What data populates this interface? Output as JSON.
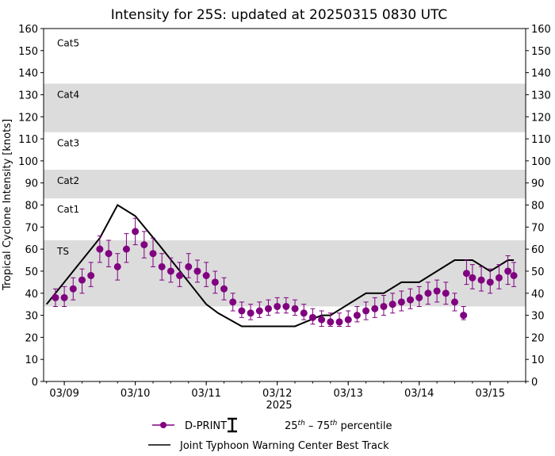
{
  "chart_data": {
    "type": "scatter",
    "title": "Intensity for 25S: updated at 20250315 0830 UTC",
    "xlabel": "2025",
    "ylabel": "Tropical Cyclone Intensity [knots]",
    "xlim": [
      "2025-03-08T17:00",
      "2025-03-15T12:00"
    ],
    "ylim": [
      0,
      160
    ],
    "yticks": [
      0,
      10,
      20,
      30,
      40,
      50,
      60,
      70,
      80,
      90,
      100,
      110,
      120,
      130,
      140,
      150,
      160
    ],
    "xticks": [
      {
        "t": "2025-03-09T00:00",
        "label": "03/09"
      },
      {
        "t": "2025-03-10T00:00",
        "label": "03/10"
      },
      {
        "t": "2025-03-11T00:00",
        "label": "03/11"
      },
      {
        "t": "2025-03-12T00:00",
        "label": "03/12"
      },
      {
        "t": "2025-03-13T00:00",
        "label": "03/13"
      },
      {
        "t": "2025-03-14T00:00",
        "label": "03/14"
      },
      {
        "t": "2025-03-15T00:00",
        "label": "03/15"
      }
    ],
    "grid": false,
    "category_bands": [
      {
        "label": "TS",
        "low": 34,
        "high": 64,
        "shaded": true
      },
      {
        "label": "Cat1",
        "low": 64,
        "high": 83,
        "shaded": false
      },
      {
        "label": "Cat2",
        "low": 83,
        "high": 96,
        "shaded": true
      },
      {
        "label": "Cat3",
        "low": 96,
        "high": 113,
        "shaded": false
      },
      {
        "label": "Cat4",
        "low": 113,
        "high": 135,
        "shaded": true
      },
      {
        "label": "Cat5",
        "low": 135,
        "high": 160,
        "shaded": false
      }
    ],
    "colors": {
      "dprint": "#800080",
      "best_track": "#000000",
      "band": "#dcdcdc"
    },
    "legend_position": "bottom",
    "legend": {
      "dprint": "D-PRINT",
      "percentile_pre": "25",
      "percentile_sup1": "th",
      "percentile_mid": " – 75",
      "percentile_sup2": "th",
      "percentile_post": " percentile",
      "best_track": "Joint Typhoon Warning Center Best Track"
    },
    "series": [
      {
        "name": "D-PRINT",
        "points": [
          [
            "2025-03-08T21:00",
            38,
            34,
            42
          ],
          [
            "2025-03-09T00:00",
            38,
            34,
            43
          ],
          [
            "2025-03-09T03:00",
            42,
            37,
            47
          ],
          [
            "2025-03-09T06:00",
            46,
            40,
            51
          ],
          [
            "2025-03-09T09:00",
            48,
            43,
            54
          ],
          [
            "2025-03-09T12:00",
            60,
            54,
            66
          ],
          [
            "2025-03-09T15:00",
            58,
            52,
            64
          ],
          [
            "2025-03-09T18:00",
            52,
            46,
            58
          ],
          [
            "2025-03-09T21:00",
            60,
            54,
            67
          ],
          [
            "2025-03-10T00:00",
            68,
            62,
            74
          ],
          [
            "2025-03-10T03:00",
            62,
            56,
            68
          ],
          [
            "2025-03-10T06:00",
            58,
            52,
            65
          ],
          [
            "2025-03-10T09:00",
            52,
            46,
            58
          ],
          [
            "2025-03-10T12:00",
            50,
            45,
            56
          ],
          [
            "2025-03-10T15:00",
            48,
            43,
            54
          ],
          [
            "2025-03-10T18:00",
            52,
            47,
            58
          ],
          [
            "2025-03-10T21:00",
            50,
            45,
            55
          ],
          [
            "2025-03-11T00:00",
            48,
            43,
            54
          ],
          [
            "2025-03-11T03:00",
            45,
            40,
            50
          ],
          [
            "2025-03-11T06:00",
            42,
            37,
            47
          ],
          [
            "2025-03-11T09:00",
            36,
            32,
            40
          ],
          [
            "2025-03-11T12:00",
            32,
            29,
            36
          ],
          [
            "2025-03-11T15:00",
            31,
            28,
            35
          ],
          [
            "2025-03-11T18:00",
            32,
            29,
            36
          ],
          [
            "2025-03-11T21:00",
            33,
            30,
            37
          ],
          [
            "2025-03-12T00:00",
            34,
            31,
            38
          ],
          [
            "2025-03-12T03:00",
            34,
            31,
            38
          ],
          [
            "2025-03-12T06:00",
            33,
            30,
            37
          ],
          [
            "2025-03-12T09:00",
            31,
            28,
            35
          ],
          [
            "2025-03-12T12:00",
            29,
            26,
            33
          ],
          [
            "2025-03-12T15:00",
            28,
            25,
            32
          ],
          [
            "2025-03-12T18:00",
            27,
            25,
            31
          ],
          [
            "2025-03-12T21:00",
            27,
            25,
            31
          ],
          [
            "2025-03-13T00:00",
            28,
            25,
            32
          ],
          [
            "2025-03-13T03:00",
            30,
            27,
            34
          ],
          [
            "2025-03-13T06:00",
            32,
            28,
            36
          ],
          [
            "2025-03-13T09:00",
            33,
            29,
            38
          ],
          [
            "2025-03-13T12:00",
            34,
            30,
            39
          ],
          [
            "2025-03-13T15:00",
            35,
            31,
            40
          ],
          [
            "2025-03-13T18:00",
            36,
            32,
            41
          ],
          [
            "2025-03-13T21:00",
            37,
            33,
            42
          ],
          [
            "2025-03-14T00:00",
            38,
            34,
            43
          ],
          [
            "2025-03-14T03:00",
            40,
            35,
            45
          ],
          [
            "2025-03-14T06:00",
            41,
            36,
            46
          ],
          [
            "2025-03-14T09:00",
            40,
            35,
            45
          ],
          [
            "2025-03-14T12:00",
            36,
            32,
            40
          ],
          [
            "2025-03-14T15:00",
            30,
            28,
            34
          ],
          [
            "2025-03-14T16:00",
            49,
            44,
            55
          ],
          [
            "2025-03-14T18:00",
            47,
            42,
            53
          ],
          [
            "2025-03-14T21:00",
            46,
            41,
            52
          ],
          [
            "2025-03-15T00:00",
            45,
            40,
            51
          ],
          [
            "2025-03-15T03:00",
            47,
            42,
            53
          ],
          [
            "2025-03-15T06:00",
            50,
            44,
            57
          ],
          [
            "2025-03-15T08:00",
            48,
            43,
            54
          ]
        ]
      },
      {
        "name": "Joint Typhoon Warning Center Best Track",
        "points": [
          [
            "2025-03-08T18:00",
            35
          ],
          [
            "2025-03-09T12:00",
            65
          ],
          [
            "2025-03-09T18:00",
            80
          ],
          [
            "2025-03-10T00:00",
            75
          ],
          [
            "2025-03-10T08:00",
            62
          ],
          [
            "2025-03-11T00:00",
            35
          ],
          [
            "2025-03-11T04:00",
            31
          ],
          [
            "2025-03-11T12:00",
            25
          ],
          [
            "2025-03-12T06:00",
            25
          ],
          [
            "2025-03-12T15:00",
            30
          ],
          [
            "2025-03-12T18:00",
            30
          ],
          [
            "2025-03-13T06:00",
            40
          ],
          [
            "2025-03-13T12:00",
            40
          ],
          [
            "2025-03-13T18:00",
            45
          ],
          [
            "2025-03-14T00:00",
            45
          ],
          [
            "2025-03-14T12:00",
            55
          ],
          [
            "2025-03-14T18:00",
            55
          ],
          [
            "2025-03-15T00:00",
            50
          ],
          [
            "2025-03-15T06:00",
            55
          ],
          [
            "2025-03-15T08:00",
            55
          ]
        ]
      }
    ]
  }
}
